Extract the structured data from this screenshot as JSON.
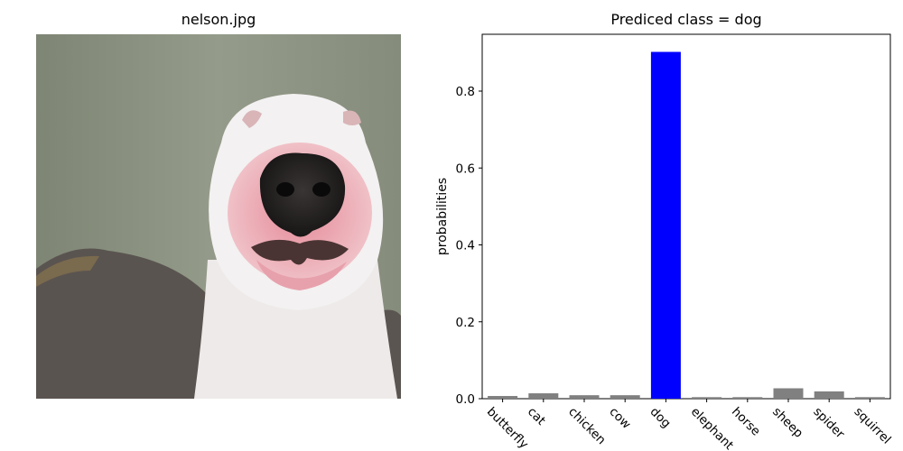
{
  "image_panel": {
    "title": "nelson.jpg",
    "subject": "white bull terrier dog face close-up photo"
  },
  "chart_data": {
    "type": "bar",
    "title": "Prediced class = dog",
    "xlabel": "",
    "ylabel": "probabilities",
    "categories": [
      "butterfly",
      "cat",
      "chicken",
      "cow",
      "dog",
      "elephant",
      "horse",
      "sheep",
      "spider",
      "squirrel"
    ],
    "values": [
      0.007,
      0.014,
      0.009,
      0.009,
      0.902,
      0.004,
      0.004,
      0.027,
      0.019,
      0.004
    ],
    "ylim": [
      0,
      0.902
    ],
    "yticks": [
      0.0,
      0.2,
      0.4,
      0.6,
      0.8
    ],
    "ytick_labels": [
      "0.0",
      "0.2",
      "0.4",
      "0.6",
      "0.8"
    ],
    "highlight_index": 4,
    "colors": {
      "default": "#808080",
      "highlight": "#0000ff"
    },
    "grid": false,
    "legend": "none"
  }
}
